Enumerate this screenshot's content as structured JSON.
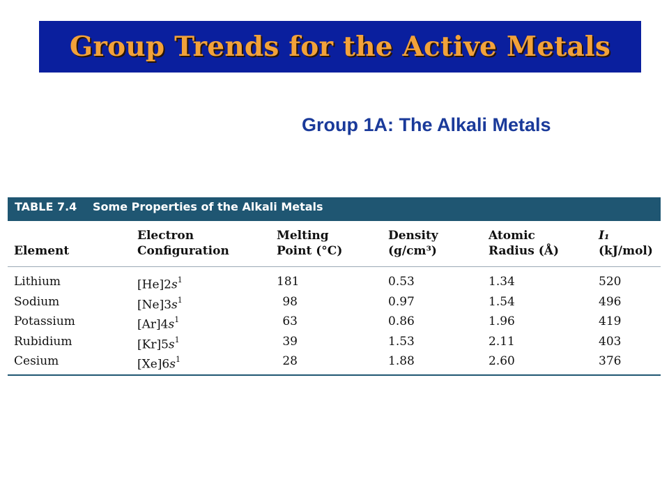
{
  "slide": {
    "title": "Group Trends for the Active Metals",
    "subtitle": "Group 1A: The Alkali Metals"
  },
  "table": {
    "number": "TABLE 7.4",
    "caption": "Some Properties of the Alkali Metals",
    "headers": {
      "element": [
        "",
        "Element"
      ],
      "config": [
        "Electron",
        "Configuration"
      ],
      "melting": [
        "Melting",
        "Point (°C)"
      ],
      "density": [
        "Density",
        "(g/cm³)"
      ],
      "radius": [
        "Atomic",
        "Radius (Å)"
      ],
      "ionization": [
        "I₁",
        "(kJ/mol)"
      ]
    },
    "rows": [
      {
        "element": "Lithium",
        "core": "[He]2",
        "orb": "s",
        "sup": "1",
        "melting": "181",
        "density": "0.53",
        "radius": "1.34",
        "ionization": "520"
      },
      {
        "element": "Sodium",
        "core": "[Ne]3",
        "orb": "s",
        "sup": "1",
        "melting": "98",
        "density": "0.97",
        "radius": "1.54",
        "ionization": "496"
      },
      {
        "element": "Potassium",
        "core": "[Ar]4",
        "orb": "s",
        "sup": "1",
        "melting": "63",
        "density": "0.86",
        "radius": "1.96",
        "ionization": "419"
      },
      {
        "element": "Rubidium",
        "core": "[Kr]5",
        "orb": "s",
        "sup": "1",
        "melting": "39",
        "density": "1.53",
        "radius": "2.11",
        "ionization": "403"
      },
      {
        "element": "Cesium",
        "core": "[Xe]6",
        "orb": "s",
        "sup": "1",
        "melting": "28",
        "density": "1.88",
        "radius": "2.60",
        "ionization": "376"
      }
    ]
  },
  "colors": {
    "title_bar": "#0a1f9e",
    "title_text": "#f2a23a",
    "subtitle": "#1a3a9a",
    "table_header": "#1f5672"
  }
}
